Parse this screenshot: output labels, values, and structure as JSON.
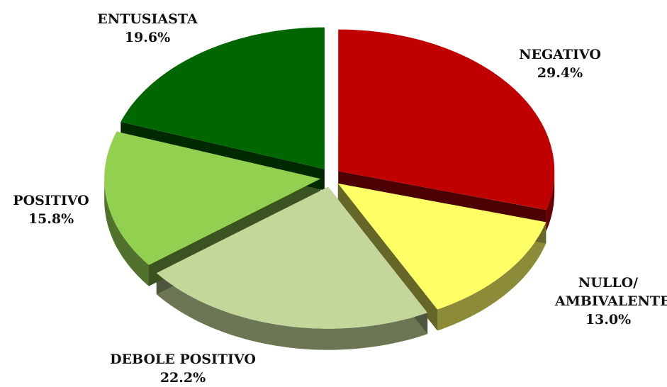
{
  "chart_data": {
    "type": "pie",
    "categories": [
      "NEGATIVO",
      "NULLO/ AMBIVALENTE",
      "DEBOLE POSITIVO",
      "POSITIVO",
      "ENTUSIASTA"
    ],
    "values": [
      29.4,
      13.0,
      22.2,
      15.8,
      19.6
    ],
    "value_labels": [
      "29.4%",
      "13.0%",
      "22.2%",
      "15.8%",
      "19.6%"
    ],
    "colors": [
      "#c00000",
      "#ffff66",
      "#c4d79b",
      "#92d050",
      "#006600"
    ]
  }
}
